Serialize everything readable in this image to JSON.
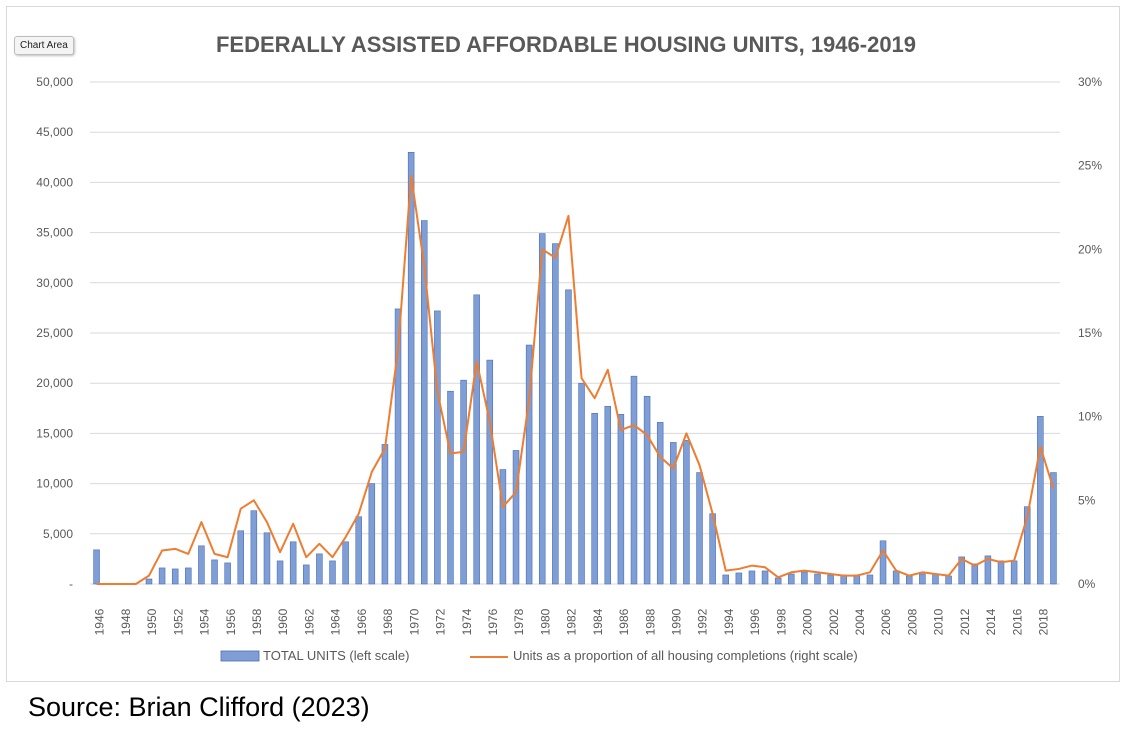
{
  "ui": {
    "chart_area_tag": "Chart Area",
    "source": "Source: Brian Clifford (2023)"
  },
  "colors": {
    "bar_fill": "#7f9ed6",
    "bar_edge": "#4a6fb5",
    "line": "#ed7d31",
    "grid": "#d9d9d9",
    "axis_text": "#595959",
    "title": "#595959"
  },
  "chart_data": {
    "type": "bar",
    "title": "FEDERALLY ASSISTED AFFORDABLE HOUSING UNITS, 1946-2019",
    "x": [
      1946,
      1947,
      1948,
      1949,
      1950,
      1951,
      1952,
      1953,
      1954,
      1955,
      1956,
      1957,
      1958,
      1959,
      1960,
      1961,
      1962,
      1963,
      1964,
      1965,
      1966,
      1967,
      1968,
      1969,
      1970,
      1971,
      1972,
      1973,
      1974,
      1975,
      1976,
      1977,
      1978,
      1979,
      1980,
      1981,
      1982,
      1983,
      1984,
      1985,
      1986,
      1987,
      1988,
      1989,
      1990,
      1991,
      1992,
      1993,
      1994,
      1995,
      1996,
      1997,
      1998,
      1999,
      2000,
      2001,
      2002,
      2003,
      2004,
      2005,
      2006,
      2007,
      2008,
      2009,
      2010,
      2011,
      2012,
      2013,
      2014,
      2015,
      2016,
      2017,
      2018,
      2019
    ],
    "x_tick_labels": [
      "1946",
      "1948",
      "1950",
      "1952",
      "1954",
      "1956",
      "1958",
      "1960",
      "1962",
      "1964",
      "1966",
      "1968",
      "1970",
      "1972",
      "1974",
      "1976",
      "1978",
      "1980",
      "1982",
      "1984",
      "1986",
      "1988",
      "1990",
      "1992",
      "1994",
      "1996",
      "1998",
      "2000",
      "2002",
      "2004",
      "2006",
      "2008",
      "2010",
      "2012",
      "2014",
      "2016",
      "2018"
    ],
    "series": [
      {
        "name": "TOTAL UNITS (left scale)",
        "type": "bar",
        "axis": "left",
        "values": [
          3400,
          50,
          50,
          0,
          500,
          1600,
          1500,
          1600,
          3800,
          2400,
          2100,
          5300,
          7300,
          5100,
          2300,
          4200,
          1900,
          3000,
          2300,
          4200,
          6700,
          10000,
          13900,
          27400,
          43000,
          36200,
          27200,
          19200,
          20300,
          28800,
          22300,
          11400,
          13300,
          23800,
          34900,
          33900,
          29300,
          20000,
          17000,
          17700,
          16900,
          20700,
          18700,
          16100,
          14100,
          14300,
          11100,
          7000,
          900,
          1100,
          1300,
          1300,
          600,
          1000,
          1200,
          1000,
          900,
          900,
          900,
          900,
          4300,
          1300,
          800,
          1000,
          1000,
          800,
          2700,
          2000,
          2800,
          2300,
          2300,
          7700,
          16700,
          11100
        ]
      },
      {
        "name": "Units as a proportion of all housing completions (right scale)",
        "type": "line",
        "axis": "right",
        "values": [
          0.0,
          0.0,
          0.0,
          0.0,
          0.005,
          0.02,
          0.021,
          0.018,
          0.037,
          0.018,
          0.016,
          0.045,
          0.05,
          0.037,
          0.019,
          0.036,
          0.016,
          0.024,
          0.016,
          0.028,
          0.042,
          0.067,
          0.081,
          0.14,
          0.244,
          0.19,
          0.115,
          0.078,
          0.079,
          0.133,
          0.097,
          0.046,
          0.055,
          0.11,
          0.2,
          0.195,
          0.22,
          0.123,
          0.111,
          0.128,
          0.092,
          0.095,
          0.089,
          0.076,
          0.069,
          0.09,
          0.071,
          0.042,
          0.008,
          0.009,
          0.011,
          0.01,
          0.004,
          0.007,
          0.008,
          0.007,
          0.006,
          0.005,
          0.005,
          0.007,
          0.02,
          0.008,
          0.005,
          0.007,
          0.006,
          0.005,
          0.015,
          0.011,
          0.015,
          0.013,
          0.014,
          0.04,
          0.082,
          0.057
        ]
      }
    ],
    "y_left": {
      "ylim": [
        0,
        50000
      ],
      "tick_labels": [
        "-",
        "5,000",
        "10,000",
        "15,000",
        "20,000",
        "25,000",
        "30,000",
        "35,000",
        "40,000",
        "45,000",
        "50,000"
      ]
    },
    "y_right": {
      "ylim": [
        0,
        0.3
      ],
      "tick_labels": [
        "0%",
        "5%",
        "10%",
        "15%",
        "20%",
        "25%",
        "30%"
      ]
    },
    "grid": true,
    "legend_position": "bottom"
  }
}
